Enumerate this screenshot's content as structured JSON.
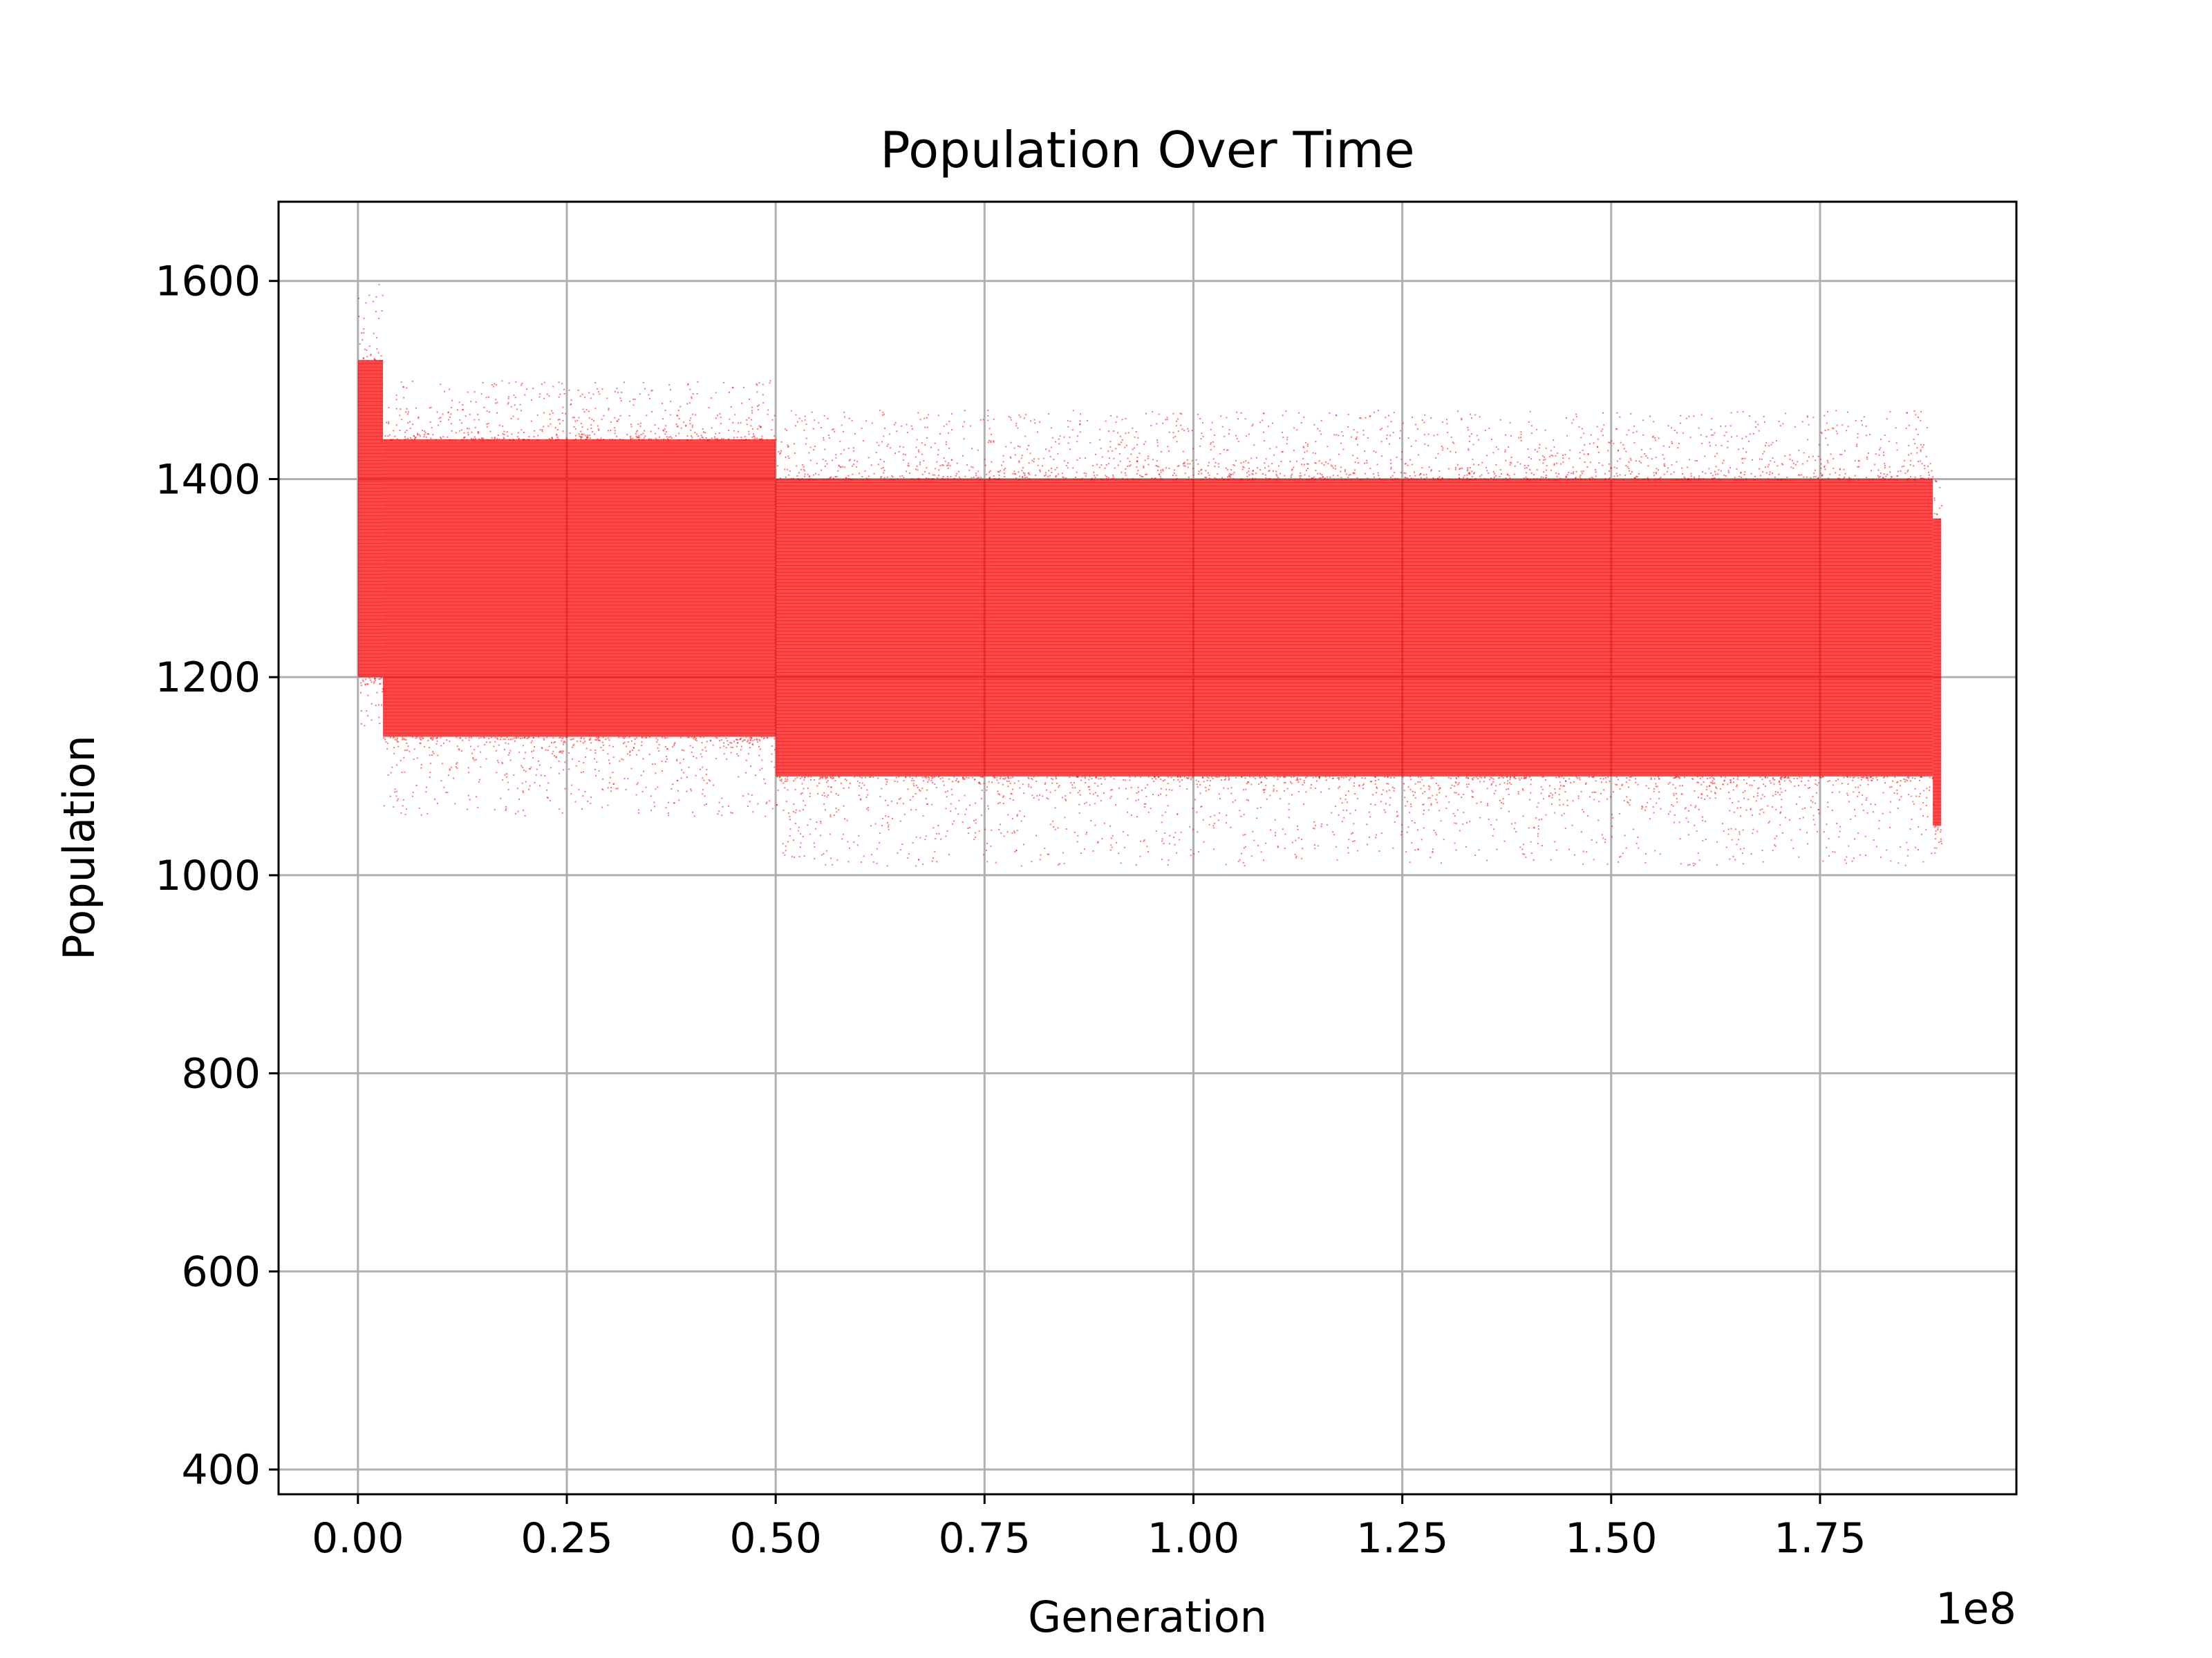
{
  "chart_data": {
    "type": "scatter",
    "title": "Population Over Time",
    "xlabel": "Generation",
    "ylabel": "Population",
    "x_offset_label": "1e8",
    "xlim": [
      -0.095,
      1.985
    ],
    "ylim": [
      375,
      1680
    ],
    "x_scale_factor": 100000000,
    "xticks": [
      0.0,
      0.25,
      0.5,
      0.75,
      1.0,
      1.25,
      1.5,
      1.75
    ],
    "xtick_labels": [
      "0.00",
      "0.25",
      "0.50",
      "0.75",
      "1.00",
      "1.25",
      "1.50",
      "1.75"
    ],
    "yticks": [
      400,
      600,
      800,
      1000,
      1200,
      1400,
      1600
    ],
    "ytick_labels": [
      "400",
      "600",
      "800",
      "1000",
      "1200",
      "1400",
      "1600"
    ],
    "grid": true,
    "marker_color": "#ff0000",
    "series": [
      {
        "segments": [
          {
            "x_start": 0.0,
            "x_end": 0.03,
            "dense_low": 1200,
            "dense_high": 1520,
            "spread_low": 1150,
            "spread_high": 1600
          },
          {
            "x_start": 0.03,
            "x_end": 0.5,
            "dense_low": 1140,
            "dense_high": 1440,
            "spread_low": 1060,
            "spread_high": 1500
          },
          {
            "x_start": 0.5,
            "x_end": 1.885,
            "dense_low": 1100,
            "dense_high": 1400,
            "spread_low": 1010,
            "spread_high": 1470
          },
          {
            "x_start": 1.885,
            "x_end": 1.895,
            "dense_low": 1050,
            "dense_high": 1360,
            "spread_low": 1010,
            "spread_high": 1400
          }
        ]
      }
    ]
  }
}
